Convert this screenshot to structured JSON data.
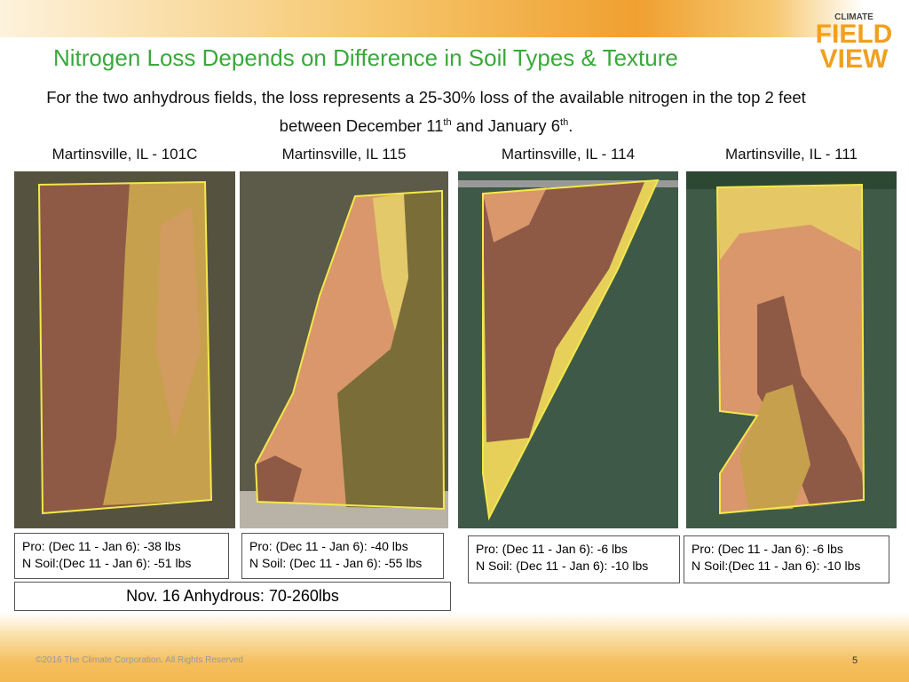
{
  "header": {
    "title": "Nitrogen Loss Depends on Difference in Soil Types & Texture",
    "logo": {
      "top": "CLIMATE",
      "line1": "FIELD",
      "line2": "VIEW"
    }
  },
  "intro": {
    "part1": "For the two anhydrous fields, the loss represents a 25-30% loss of the available nitrogen in the top 2 feet between December 11",
    "sup1": "th",
    "part2": " and January 6",
    "sup2": "th",
    "part3": "."
  },
  "fields": [
    {
      "title": "Martinsville, IL - 101C",
      "pro": "Pro: (Dec 11 - Jan 6): -38 lbs",
      "nsoil": "N Soil:(Dec 11 - Jan 6): -51 lbs"
    },
    {
      "title": "Martinsville, IL 115",
      "pro": "Pro: (Dec 11 - Jan 6): -40 lbs",
      "nsoil": "N Soil: (Dec 11 - Jan 6): -55 lbs"
    },
    {
      "title": "Martinsville, IL - 114",
      "pro": "Pro: (Dec 11 - Jan 6): -6 lbs",
      "nsoil": "N Soil: (Dec 11 - Jan 6): -10 lbs"
    },
    {
      "title": "Martinsville, IL - 111",
      "pro": "Pro: (Dec 11 - Jan 6): -6 lbs",
      "nsoil": "N Soil:(Dec 11 - Jan 6): -10 lbs"
    }
  ],
  "note": "Nov. 16 Anhydrous: 70-260lbs",
  "footer": {
    "copyright": "©2016 The Climate Corporation. All Rights Reserved",
    "page": "5"
  }
}
